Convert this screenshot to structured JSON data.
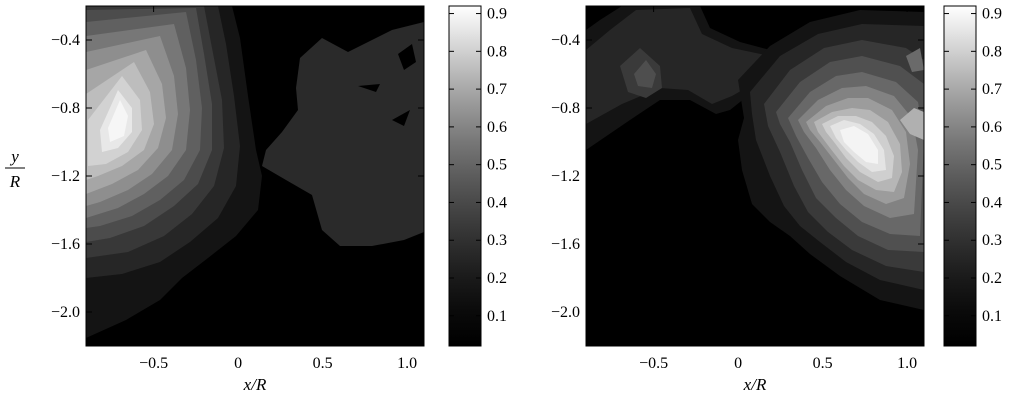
{
  "chart_data": [
    {
      "type": "contour",
      "panel": "left",
      "xlabel": "x/R",
      "ylabel_numerator": "y",
      "ylabel_denominator": "R",
      "xlim": [
        -0.9,
        1.1
      ],
      "ylim": [
        -2.2,
        -0.2
      ],
      "xticks": [
        -0.5,
        0,
        0.5,
        1.0
      ],
      "xtick_labels": [
        "−0.5",
        "0",
        "0.5",
        "1.0"
      ],
      "yticks": [
        -0.4,
        -0.8,
        -1.2,
        -1.6,
        -2.0
      ],
      "ytick_labels": [
        "−0.4",
        "−0.8",
        "−1.2",
        "−1.6",
        "−2.0"
      ],
      "colorbar": {
        "range": [
          0.02,
          0.92
        ],
        "ticks": [
          0.1,
          0.2,
          0.3,
          0.4,
          0.5,
          0.6,
          0.7,
          0.8,
          0.9
        ],
        "tick_labels": [
          "0.1",
          "0.2",
          "0.3",
          "0.4",
          "0.5",
          "0.6",
          "0.7",
          "0.8",
          "0.9"
        ],
        "colormap": "gray"
      },
      "features": [
        {
          "kind": "peak",
          "x": -0.75,
          "y": -0.85,
          "value": 0.9
        },
        {
          "kind": "plateau",
          "x": 0.55,
          "y": -1.0,
          "value": 0.15
        }
      ]
    },
    {
      "type": "contour",
      "panel": "right",
      "xlabel": "x/R",
      "xlim": [
        -0.9,
        1.1
      ],
      "ylim": [
        -2.2,
        -0.2
      ],
      "xticks": [
        -0.5,
        0,
        0.5,
        1.0
      ],
      "xtick_labels": [
        "−0.5",
        "0",
        "0.5",
        "1.0"
      ],
      "yticks": [
        -0.4,
        -0.8,
        -1.2,
        -1.6,
        -2.0
      ],
      "ytick_labels": [
        "−0.4",
        "−0.8",
        "−1.2",
        "−1.6",
        "−2.0"
      ],
      "colorbar": {
        "range": [
          0.02,
          0.92
        ],
        "ticks": [
          0.1,
          0.2,
          0.3,
          0.4,
          0.5,
          0.6,
          0.7,
          0.8,
          0.9
        ],
        "tick_labels": [
          "0.1",
          "0.2",
          "0.3",
          "0.4",
          "0.5",
          "0.6",
          "0.7",
          "0.8",
          "0.9"
        ],
        "colormap": "gray"
      },
      "features": [
        {
          "kind": "peak",
          "x": 0.7,
          "y": -1.0,
          "value": 0.9
        },
        {
          "kind": "ridge",
          "x": -0.3,
          "y": -0.6,
          "value": 0.25
        },
        {
          "kind": "spot",
          "x": -0.55,
          "y": -0.5,
          "value": 0.3
        }
      ]
    }
  ]
}
